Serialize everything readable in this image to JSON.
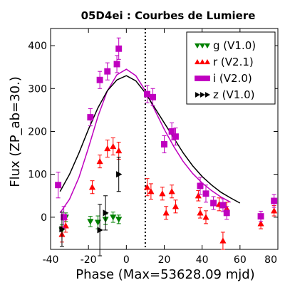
{
  "chart_data": {
    "type": "scatter",
    "title": "05D4ei : Courbes de Lumiere",
    "xlabel": "Phase (Max=53628.09 mjd)",
    "ylabel": "Flux (ZP_ab=30.)",
    "xlim": [
      -40,
      80
    ],
    "ylim": [
      -75,
      440
    ],
    "xticks": [
      -40,
      -20,
      0,
      20,
      40,
      60,
      80
    ],
    "yticks": [
      0,
      100,
      200,
      300,
      400
    ],
    "grid": false,
    "legend_position": "top-right",
    "vline_x": 10,
    "series": [
      {
        "name": "g (V1.0)",
        "color": "#008000",
        "marker": "triangle-down",
        "points": [
          {
            "x": -34,
            "y": -30,
            "err": 12
          },
          {
            "x": -32,
            "y": 0,
            "err": 10
          },
          {
            "x": -19,
            "y": -10,
            "err": 12
          },
          {
            "x": -15,
            "y": -12,
            "err": 15
          },
          {
            "x": -11,
            "y": -5,
            "err": 12
          },
          {
            "x": -7,
            "y": 0,
            "err": 12
          },
          {
            "x": -4,
            "y": -5,
            "err": 10
          }
        ]
      },
      {
        "name": "r (V2.1)",
        "color": "#ff0000",
        "marker": "triangle-up",
        "points": [
          {
            "x": -34,
            "y": -40,
            "err": 18
          },
          {
            "x": -32,
            "y": -20,
            "err": 15
          },
          {
            "x": -18,
            "y": 70,
            "err": 15
          },
          {
            "x": -14,
            "y": 130,
            "err": 15
          },
          {
            "x": -10,
            "y": 160,
            "err": 20
          },
          {
            "x": -7,
            "y": 165,
            "err": 20
          },
          {
            "x": -4,
            "y": 155,
            "err": 20
          },
          {
            "x": 11,
            "y": 70,
            "err": 20
          },
          {
            "x": 13,
            "y": 60,
            "err": 18
          },
          {
            "x": 19,
            "y": 55,
            "err": 15
          },
          {
            "x": 21,
            "y": 10,
            "err": 15
          },
          {
            "x": 24,
            "y": 60,
            "err": 15
          },
          {
            "x": 26,
            "y": 25,
            "err": 15
          },
          {
            "x": 38,
            "y": 50,
            "err": 12
          },
          {
            "x": 39,
            "y": 10,
            "err": 12
          },
          {
            "x": 42,
            "y": 0,
            "err": 15
          },
          {
            "x": 49,
            "y": 30,
            "err": 15
          },
          {
            "x": 51,
            "y": -55,
            "err": 20
          },
          {
            "x": 53,
            "y": 20,
            "err": 15
          },
          {
            "x": 71,
            "y": -15,
            "err": 12
          },
          {
            "x": 78,
            "y": 15,
            "err": 12
          }
        ]
      },
      {
        "name": "i (V2.0)",
        "color": "#bf00bf",
        "marker": "square",
        "points": [
          {
            "x": -36,
            "y": 75,
            "err": 30
          },
          {
            "x": -33,
            "y": 0,
            "err": 25
          },
          {
            "x": -19,
            "y": 233,
            "err": 20
          },
          {
            "x": -14,
            "y": 320,
            "err": 20
          },
          {
            "x": -10,
            "y": 340,
            "err": 20
          },
          {
            "x": -5,
            "y": 357,
            "err": 20
          },
          {
            "x": -4,
            "y": 393,
            "err": 25
          },
          {
            "x": 11,
            "y": 287,
            "err": 20
          },
          {
            "x": 14,
            "y": 280,
            "err": 20
          },
          {
            "x": 20,
            "y": 170,
            "err": 20
          },
          {
            "x": 24,
            "y": 200,
            "err": 20
          },
          {
            "x": 26,
            "y": 188,
            "err": 20
          },
          {
            "x": 39,
            "y": 73,
            "err": 20
          },
          {
            "x": 42,
            "y": 55,
            "err": 20
          },
          {
            "x": 46,
            "y": 33,
            "err": 15
          },
          {
            "x": 51,
            "y": 28,
            "err": 15
          },
          {
            "x": 53,
            "y": 10,
            "err": 15
          },
          {
            "x": 71,
            "y": 2,
            "err": 12
          },
          {
            "x": 78,
            "y": 38,
            "err": 15
          }
        ]
      },
      {
        "name": "z (V1.0)",
        "color": "#000000",
        "marker": "triangle-right",
        "points": [
          {
            "x": -34,
            "y": -28,
            "err": 40
          },
          {
            "x": -14,
            "y": -30,
            "err": 60
          },
          {
            "x": -11,
            "y": 10,
            "err": 40
          },
          {
            "x": -4,
            "y": 100,
            "err": 40
          }
        ]
      }
    ],
    "fits": [
      {
        "color": "#bf00bf",
        "points": [
          [
            -35,
            10
          ],
          [
            -30,
            42
          ],
          [
            -25,
            93
          ],
          [
            -20,
            162
          ],
          [
            -15,
            235
          ],
          [
            -10,
            295
          ],
          [
            -5,
            332
          ],
          [
            0,
            345
          ],
          [
            5,
            330
          ],
          [
            10,
            295
          ],
          [
            15,
            250
          ],
          [
            20,
            205
          ],
          [
            25,
            165
          ],
          [
            30,
            130
          ],
          [
            35,
            102
          ],
          [
            40,
            80
          ],
          [
            45,
            62
          ],
          [
            50,
            47
          ],
          [
            55,
            35
          ]
        ]
      },
      {
        "color": "#000000",
        "points": [
          [
            -35,
            60
          ],
          [
            -30,
            100
          ],
          [
            -25,
            150
          ],
          [
            -20,
            205
          ],
          [
            -15,
            255
          ],
          [
            -10,
            295
          ],
          [
            -5,
            320
          ],
          [
            0,
            330
          ],
          [
            5,
            318
          ],
          [
            10,
            290
          ],
          [
            15,
            255
          ],
          [
            20,
            220
          ],
          [
            25,
            185
          ],
          [
            30,
            150
          ],
          [
            35,
            120
          ],
          [
            40,
            95
          ],
          [
            45,
            75
          ],
          [
            50,
            58
          ],
          [
            55,
            45
          ],
          [
            60,
            33
          ]
        ]
      }
    ]
  }
}
